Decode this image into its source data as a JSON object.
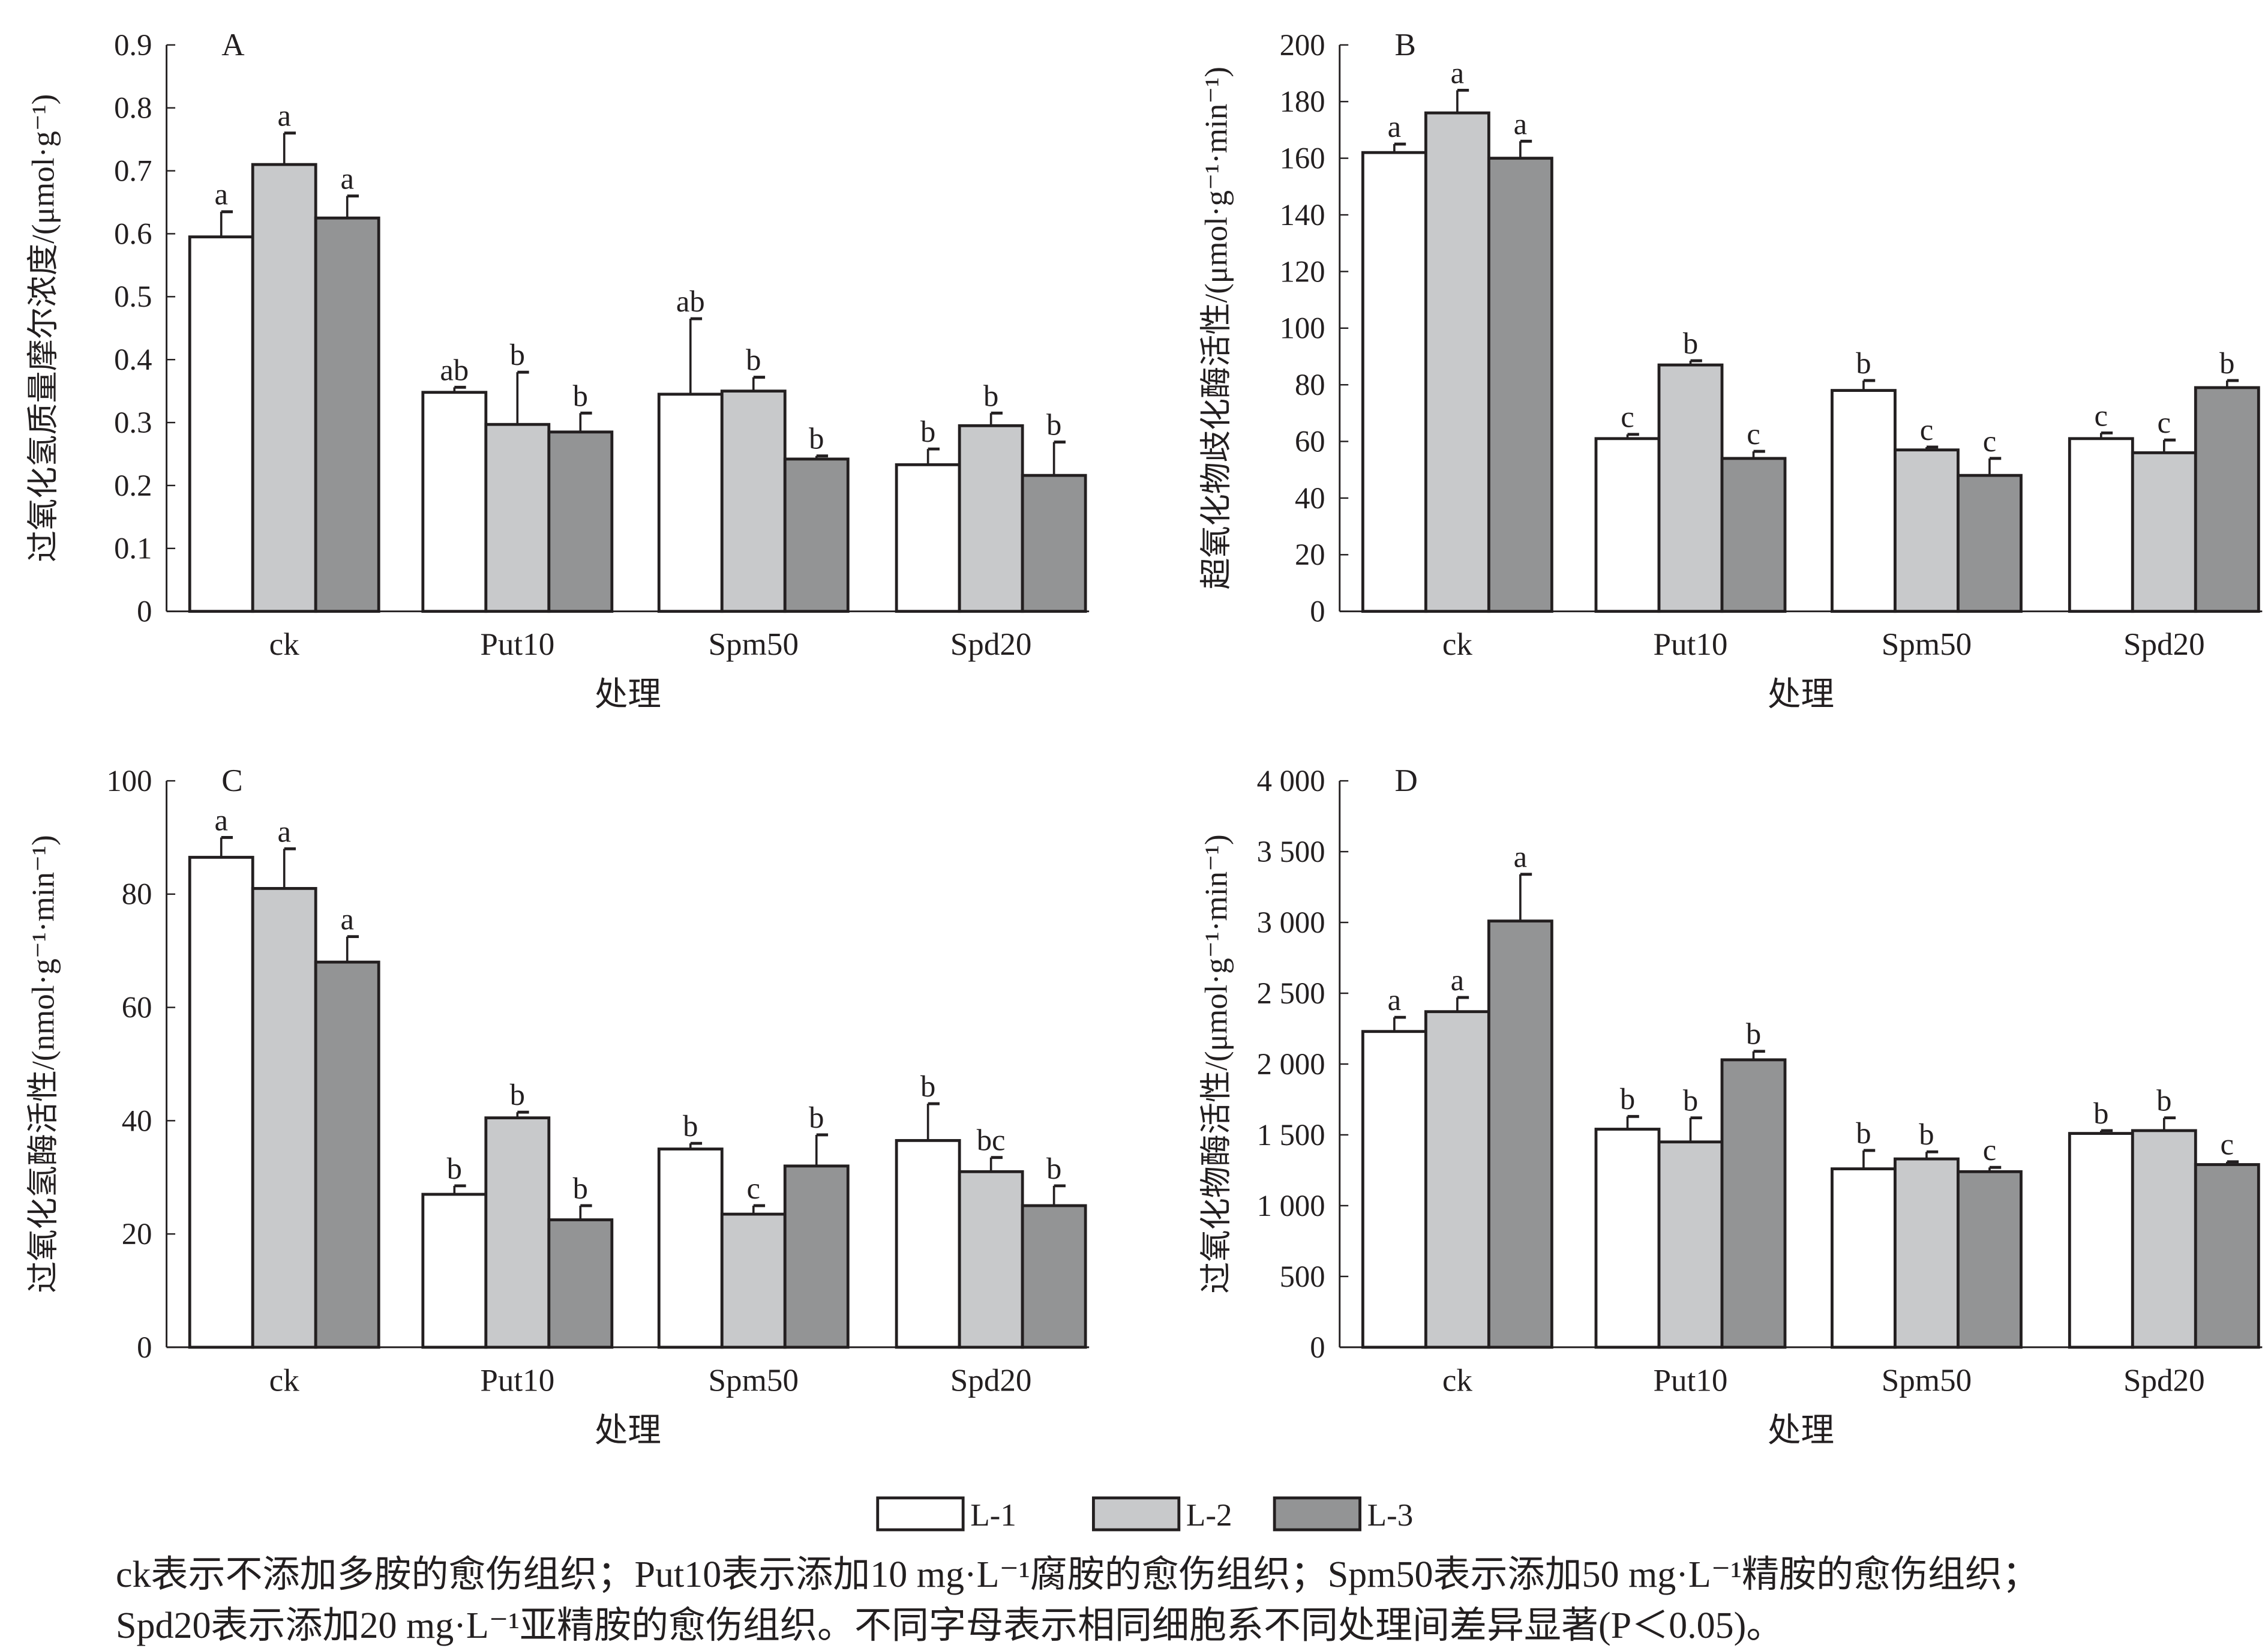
{
  "chart_data": [
    {
      "type": "bar",
      "panel": "A",
      "categories": [
        "ck",
        "Put10",
        "Spm50",
        "Spd20"
      ],
      "xlabel": "处理",
      "ylabel": "过氧化氢质量摩尔浓度/(μmol·g⁻¹)",
      "ylim": [
        0,
        0.9
      ],
      "yticks": [
        0,
        0.1,
        0.2,
        0.3,
        0.4,
        0.5,
        0.6,
        0.7,
        0.8,
        0.9
      ],
      "ytick_labels": [
        "0",
        "0.1",
        "0.2",
        "0.3",
        "0.4",
        "0.5",
        "0.6",
        "0.7",
        "0.8",
        "0.9"
      ],
      "series": [
        {
          "name": "L-1",
          "values": [
            0.595,
            0.348,
            0.345,
            0.233
          ],
          "errors": [
            0.04,
            0.008,
            0.12,
            0.025
          ],
          "letters": [
            "a",
            "ab",
            "ab",
            "b"
          ]
        },
        {
          "name": "L-2",
          "values": [
            0.71,
            0.297,
            0.35,
            0.295
          ],
          "errors": [
            0.05,
            0.083,
            0.022,
            0.02
          ],
          "letters": [
            "a",
            "b",
            "b",
            "b"
          ]
        },
        {
          "name": "L-3",
          "values": [
            0.625,
            0.285,
            0.242,
            0.216
          ],
          "errors": [
            0.035,
            0.03,
            0.005,
            0.053
          ],
          "letters": [
            "a",
            "b",
            "b",
            "b"
          ]
        }
      ]
    },
    {
      "type": "bar",
      "panel": "B",
      "categories": [
        "ck",
        "Put10",
        "Spm50",
        "Spd20"
      ],
      "xlabel": "处理",
      "ylabel": "超氧化物歧化酶活性/(μmol·g⁻¹·min⁻¹)",
      "ylim": [
        0,
        200
      ],
      "yticks": [
        0,
        20,
        40,
        60,
        80,
        100,
        120,
        140,
        160,
        180,
        200
      ],
      "ytick_labels": [
        "0",
        "20",
        "40",
        "60",
        "80",
        "100",
        "120",
        "140",
        "160",
        "180",
        "200"
      ],
      "series": [
        {
          "name": "L-1",
          "values": [
            162,
            61,
            78,
            61
          ],
          "errors": [
            3,
            1.5,
            3.5,
            2
          ],
          "letters": [
            "a",
            "c",
            "b",
            "c"
          ]
        },
        {
          "name": "L-2",
          "values": [
            176,
            87,
            57,
            56
          ],
          "errors": [
            8,
            1.5,
            1,
            4.5
          ],
          "letters": [
            "a",
            "b",
            "c",
            "c"
          ]
        },
        {
          "name": "L-3",
          "values": [
            160,
            54,
            48,
            79
          ],
          "errors": [
            6,
            2.5,
            6,
            2.5
          ],
          "letters": [
            "a",
            "c",
            "c",
            "b"
          ]
        }
      ]
    },
    {
      "type": "bar",
      "panel": "C",
      "categories": [
        "ck",
        "Put10",
        "Spm50",
        "Spd20"
      ],
      "xlabel": "处理",
      "ylabel": "过氧化氢酶活性/(nmol·g⁻¹·min⁻¹)",
      "ylim": [
        0,
        100
      ],
      "yticks": [
        0,
        20,
        40,
        60,
        80,
        100
      ],
      "ytick_labels": [
        "0",
        "20",
        "40",
        "60",
        "80",
        "100"
      ],
      "series": [
        {
          "name": "L-1",
          "values": [
            86.5,
            27,
            35,
            36.5
          ],
          "errors": [
            3.5,
            1.5,
            1,
            6.5
          ],
          "letters": [
            "a",
            "b",
            "b",
            "b"
          ]
        },
        {
          "name": "L-2",
          "values": [
            81,
            40.5,
            23.5,
            31
          ],
          "errors": [
            7,
            1,
            1.5,
            2.5
          ],
          "letters": [
            "a",
            "b",
            "c",
            "bc"
          ]
        },
        {
          "name": "L-3",
          "values": [
            68,
            22.5,
            32,
            25
          ],
          "errors": [
            4.5,
            2.5,
            5.5,
            3.5
          ],
          "letters": [
            "a",
            "b",
            "b",
            "b"
          ]
        }
      ]
    },
    {
      "type": "bar",
      "panel": "D",
      "categories": [
        "ck",
        "Put10",
        "Spm50",
        "Spd20"
      ],
      "xlabel": "处理",
      "ylabel": "过氧化物酶活性/(μmol·g⁻¹·min⁻¹)",
      "ylim": [
        0,
        4000
      ],
      "yticks": [
        0,
        500,
        1000,
        1500,
        2000,
        2500,
        3000,
        3500,
        4000
      ],
      "ytick_labels": [
        "0",
        "500",
        "1 000",
        "1 500",
        "2 000",
        "2 500",
        "3 000",
        "3 500",
        "4 000"
      ],
      "series": [
        {
          "name": "L-1",
          "values": [
            2230,
            1540,
            1260,
            1510
          ],
          "errors": [
            100,
            90,
            130,
            20
          ],
          "letters": [
            "a",
            "b",
            "b",
            "b"
          ]
        },
        {
          "name": "L-2",
          "values": [
            2370,
            1450,
            1330,
            1530
          ],
          "errors": [
            100,
            170,
            50,
            90
          ],
          "letters": [
            "a",
            "b",
            "b",
            "b"
          ]
        },
        {
          "name": "L-3",
          "values": [
            3010,
            2030,
            1240,
            1290
          ],
          "errors": [
            330,
            60,
            30,
            20
          ],
          "letters": [
            "a",
            "b",
            "c",
            "c"
          ]
        }
      ]
    }
  ],
  "legend": [
    {
      "label": "L-1",
      "color": "#ffffff"
    },
    {
      "label": "L-2",
      "color": "#c8c9cb"
    },
    {
      "label": "L-3",
      "color": "#939495"
    }
  ],
  "caption": {
    "line1": "ck表示不添加多胺的愈伤组织；Put10表示添加10 mg·L⁻¹腐胺的愈伤组织；Spm50表示添加50 mg·L⁻¹精胺的愈伤组织；",
    "line2": "Spd20表示添加20 mg·L⁻¹亚精胺的愈伤组织。不同字母表示相同细胞系不同处理间差异显著(P＜0.05)。"
  },
  "colors": {
    "axis": "#231f20",
    "bar_edge": "#231f20"
  }
}
